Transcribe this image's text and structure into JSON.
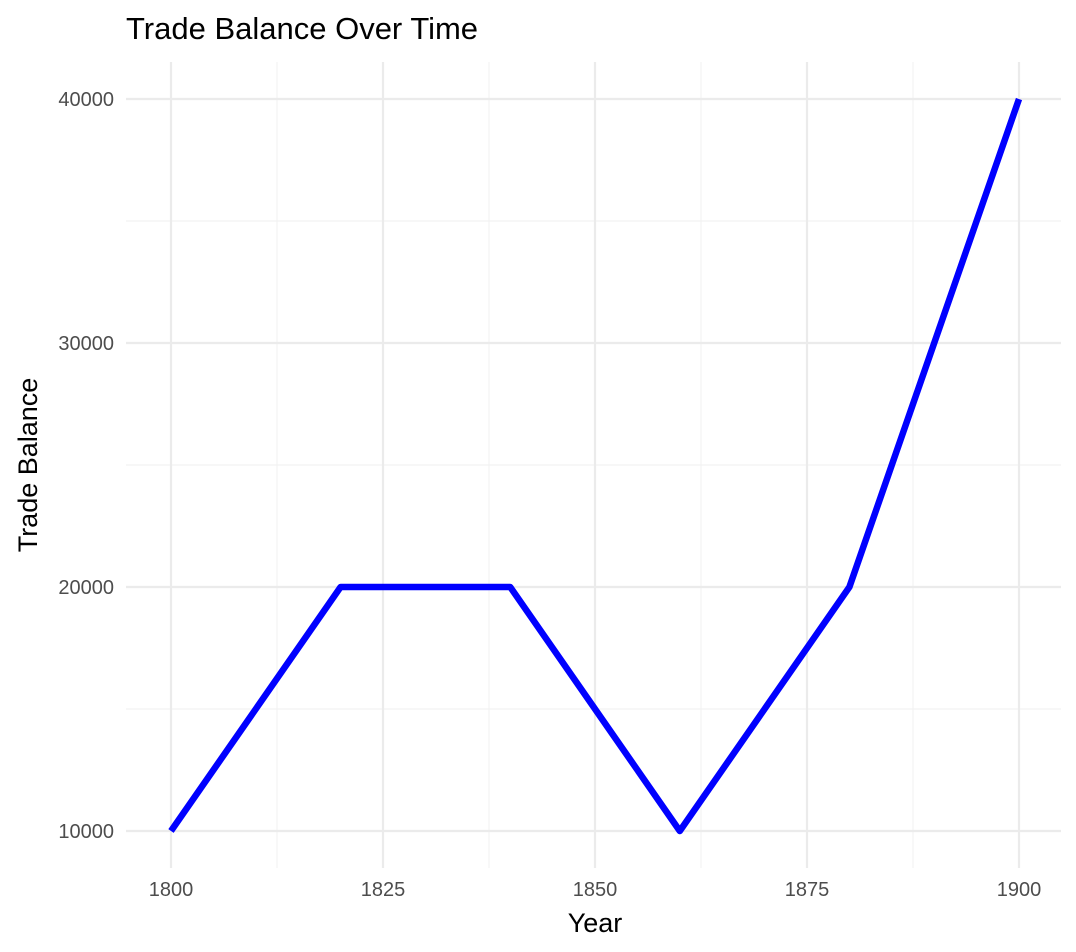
{
  "chart_data": {
    "type": "line",
    "title": "Trade Balance Over Time",
    "xlabel": "Year",
    "ylabel": "Trade Balance",
    "x": [
      1800,
      1820,
      1840,
      1860,
      1880,
      1900
    ],
    "series": [
      {
        "values": [
          10000,
          20000,
          20000,
          10000,
          20000,
          40000
        ],
        "color": "#0000ff"
      }
    ],
    "xlim": [
      1800,
      1900
    ],
    "ylim": [
      10000,
      40000
    ],
    "x_ticks": [
      1800,
      1825,
      1850,
      1875,
      1900
    ],
    "y_ticks": [
      10000,
      20000,
      30000,
      40000
    ],
    "grid": true,
    "legend": "none"
  }
}
